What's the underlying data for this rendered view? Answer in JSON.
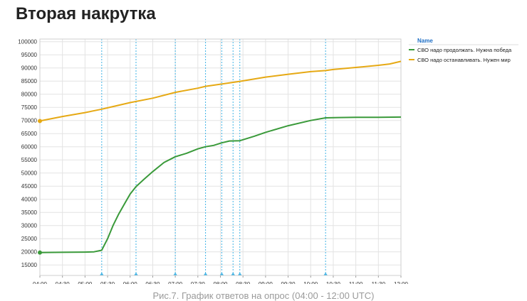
{
  "page": {
    "heading": "Вторая накрутка",
    "caption": "Рис.7. График ответов на опрос (04:00 - 12:00 UTC)"
  },
  "chart_data": {
    "type": "line",
    "title": "",
    "xlabel": "",
    "ylabel": "",
    "x_ticks": [
      "04:00",
      "04:30",
      "05:00",
      "05:30",
      "06:00",
      "06:30",
      "07:00",
      "07:30",
      "08:00",
      "08:30",
      "09:00",
      "09:30",
      "10:00",
      "10:30",
      "11:00",
      "11:30",
      "12:00"
    ],
    "x_range_hours": [
      4,
      12
    ],
    "ylim": [
      11000,
      101000
    ],
    "y_ticks": [
      15000,
      20000,
      25000,
      30000,
      35000,
      40000,
      45000,
      50000,
      55000,
      60000,
      65000,
      70000,
      75000,
      80000,
      85000,
      90000,
      95000,
      100000
    ],
    "grid": true,
    "legend": {
      "title": "Name",
      "placement": "right",
      "entries": [
        "СВО надо продолжать. Нужна победа",
        "СВО надо останавливать. Нужен мир"
      ]
    },
    "event_markers_hours": [
      5.37,
      6.13,
      7.0,
      7.67,
      8.03,
      8.28,
      8.43,
      10.33
    ],
    "series": [
      {
        "name": "СВО надо продолжать. Нужна победа",
        "color": "#3a9a3a",
        "points": [
          [
            4.0,
            19700
          ],
          [
            4.5,
            19800
          ],
          [
            5.0,
            19900
          ],
          [
            5.2,
            20000
          ],
          [
            5.37,
            20600
          ],
          [
            5.5,
            25000
          ],
          [
            5.62,
            30000
          ],
          [
            5.75,
            34500
          ],
          [
            5.9,
            39000
          ],
          [
            6.0,
            42000
          ],
          [
            6.13,
            44800
          ],
          [
            6.3,
            47500
          ],
          [
            6.5,
            50500
          ],
          [
            6.75,
            54000
          ],
          [
            7.0,
            56200
          ],
          [
            7.25,
            57500
          ],
          [
            7.5,
            59200
          ],
          [
            7.67,
            60000
          ],
          [
            7.85,
            60500
          ],
          [
            8.03,
            61500
          ],
          [
            8.2,
            62200
          ],
          [
            8.43,
            62300
          ],
          [
            8.75,
            64000
          ],
          [
            9.0,
            65500
          ],
          [
            9.5,
            68000
          ],
          [
            10.0,
            70000
          ],
          [
            10.33,
            71000
          ],
          [
            10.6,
            71100
          ],
          [
            11.0,
            71200
          ],
          [
            11.5,
            71200
          ],
          [
            12.0,
            71300
          ]
        ]
      },
      {
        "name": "СВО надо останавливать. Нужен мир",
        "color": "#e6a914",
        "points": [
          [
            4.0,
            69800
          ],
          [
            4.5,
            71500
          ],
          [
            5.0,
            73000
          ],
          [
            5.37,
            74300
          ],
          [
            5.5,
            74800
          ],
          [
            6.0,
            76800
          ],
          [
            6.5,
            78500
          ],
          [
            7.0,
            80700
          ],
          [
            7.5,
            82300
          ],
          [
            7.67,
            83000
          ],
          [
            8.0,
            83800
          ],
          [
            8.43,
            84900
          ],
          [
            9.0,
            86500
          ],
          [
            9.5,
            87600
          ],
          [
            10.0,
            88600
          ],
          [
            10.33,
            89000
          ],
          [
            10.5,
            89400
          ],
          [
            11.0,
            90200
          ],
          [
            11.5,
            91000
          ],
          [
            11.75,
            91500
          ],
          [
            12.0,
            92500
          ]
        ]
      }
    ]
  }
}
